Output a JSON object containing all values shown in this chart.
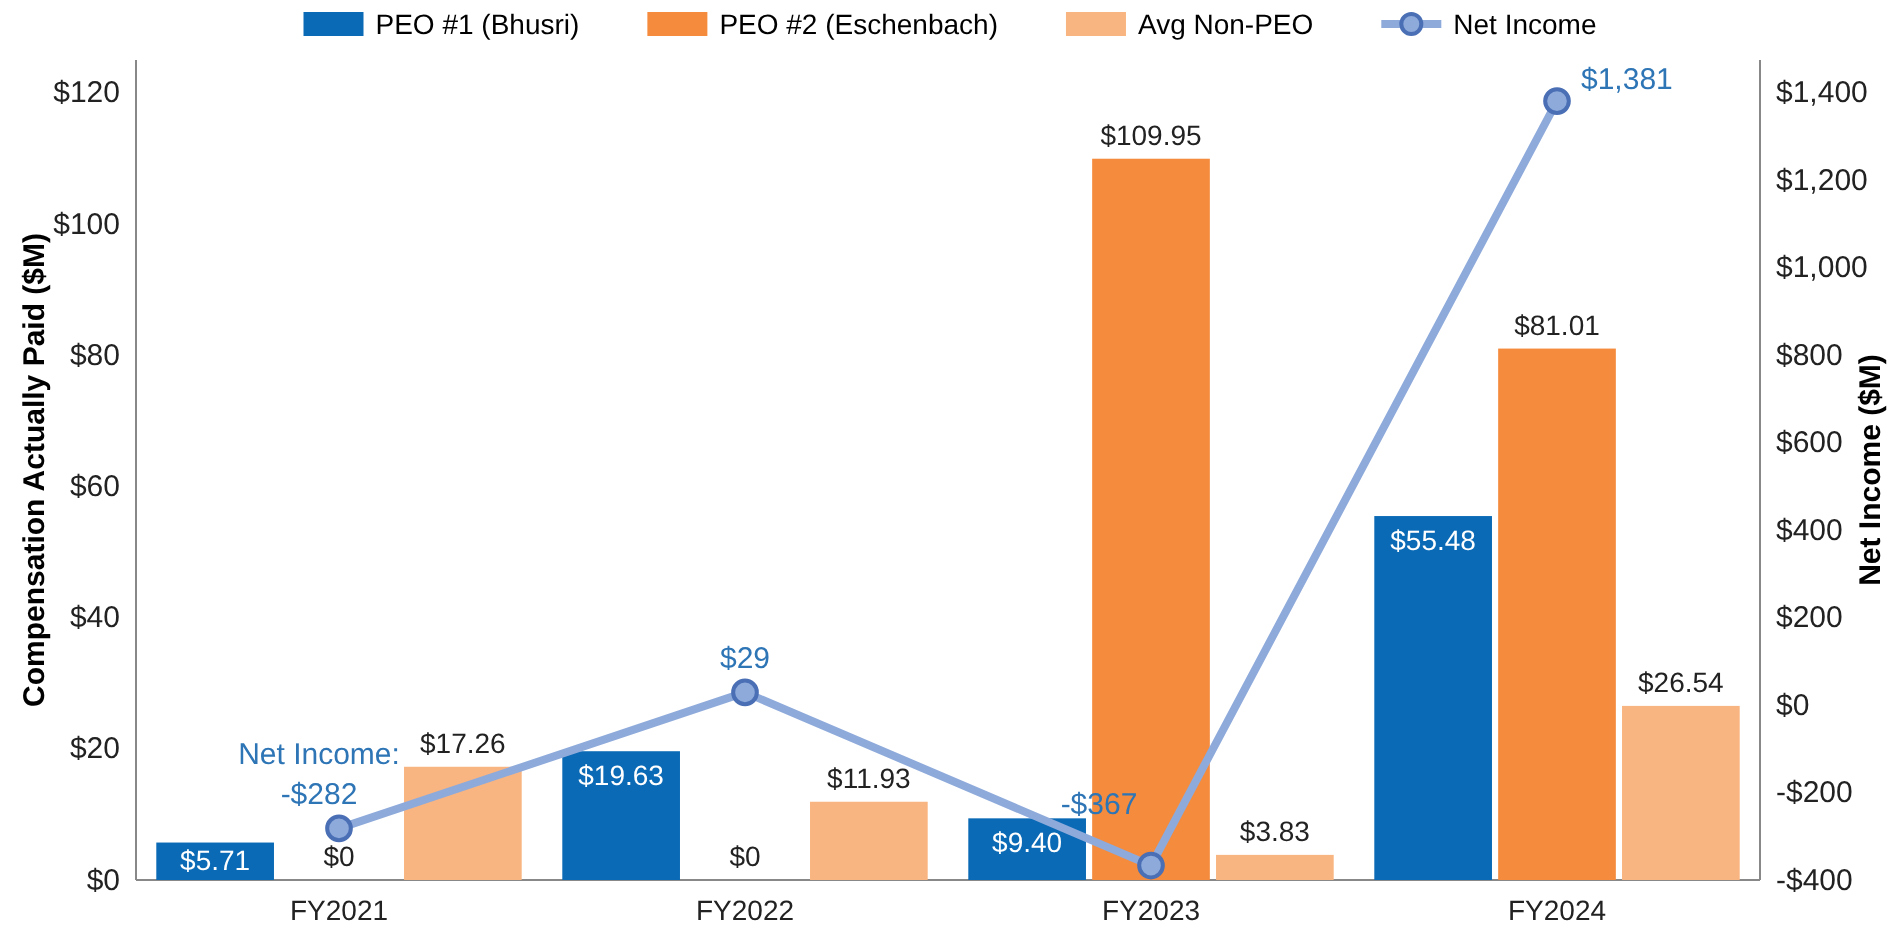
{
  "chart_data": {
    "type": "bar",
    "ylabel": "Compensation Actually Paid ($M)",
    "y2label": "Net Income ($M)",
    "categories": [
      "FY2021",
      "FY2022",
      "FY2023",
      "FY2024"
    ],
    "series": [
      {
        "name": "PEO #1 (Bhusri)",
        "color": "#0a6ab6",
        "values": [
          5.71,
          19.63,
          9.4,
          55.48
        ],
        "value_labels": [
          "$5.71",
          "$19.63",
          "$9.40",
          "$55.48"
        ]
      },
      {
        "name": "PEO #2 (Eschenbach)",
        "color": "#f58b3c",
        "values": [
          0,
          0,
          109.95,
          81.01
        ],
        "value_labels": [
          "$0",
          "$0",
          "$109.95",
          "$81.01"
        ]
      },
      {
        "name": "Avg Non-PEO",
        "color": "#f9b581",
        "values": [
          17.26,
          11.93,
          3.83,
          26.54
        ],
        "value_labels": [
          "$17.26",
          "$11.93",
          "$3.83",
          "$26.54"
        ]
      },
      {
        "name": "Net Income",
        "type": "line",
        "axis": "y2",
        "color": "#8eaadb",
        "marker": "circle",
        "values": [
          -282,
          29,
          -367,
          1381
        ],
        "value_labels": [
          "-$282",
          "$29",
          "-$367",
          "$1,381"
        ]
      }
    ],
    "ylim": [
      0,
      125
    ],
    "yticks": [
      {
        "value": 0,
        "label": "$0"
      },
      {
        "value": 20,
        "label": "$20"
      },
      {
        "value": 40,
        "label": "$40"
      },
      {
        "value": 60,
        "label": "$60"
      },
      {
        "value": 80,
        "label": "$80"
      },
      {
        "value": 100,
        "label": "$100"
      },
      {
        "value": 120,
        "label": "$120"
      }
    ],
    "y2lim": [
      -400,
      1475
    ],
    "y2ticks": [
      {
        "value": -400,
        "label": "-$400"
      },
      {
        "value": -200,
        "label": "-$200"
      },
      {
        "value": 0,
        "label": "$0"
      },
      {
        "value": 200,
        "label": "$200"
      },
      {
        "value": 400,
        "label": "$400"
      },
      {
        "value": 600,
        "label": "$600"
      },
      {
        "value": 800,
        "label": "$800"
      },
      {
        "value": 1000,
        "label": "$1,000"
      },
      {
        "value": 1200,
        "label": "$1,200"
      },
      {
        "value": 1400,
        "label": "$1,400"
      }
    ],
    "annotations": [
      "Net Income:"
    ],
    "legend": "top",
    "grid": false
  }
}
